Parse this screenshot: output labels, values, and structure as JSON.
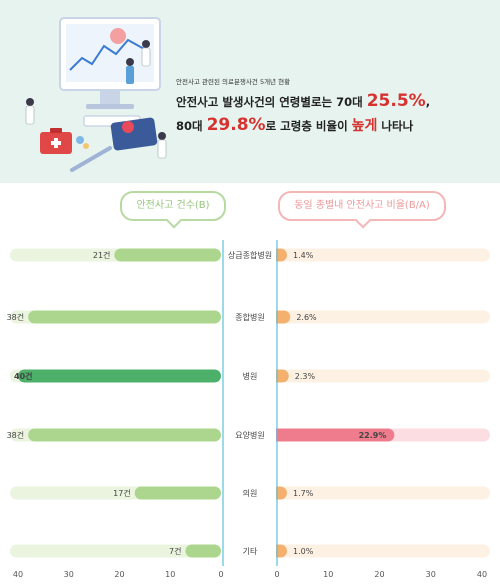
{
  "hero": {
    "subtitle": "안전사고 관련된 의료분쟁사건 5개년 현황",
    "line1_pre": "안전사고 발생사건의 연령별로는 70대 ",
    "line1_pct": "25.5%",
    "line1_post": ",",
    "line2_pre": "80대 ",
    "line2_pct": "29.8%",
    "line2_mid": "로 고령층 비율이 ",
    "line2_emph": "높게",
    "line2_post": " 나타나"
  },
  "legend": {
    "left": "안전사고 건수(B)",
    "right": "동일 종별내 안전사고 비율(B/A)"
  },
  "colors": {
    "green_track": "#eaf4df",
    "green_bar": "#acd58e",
    "green_highlight": "#4caf6a",
    "orange_track": "#fdf1e3",
    "orange_bar": "#f4b06e",
    "pink_track": "#fbdde2",
    "pink_highlight": "#ef7c8c",
    "axis_line": "#5bc0dc"
  },
  "chart_data": {
    "type": "bar",
    "categories": [
      "상급종합병원",
      "종합병원",
      "병원",
      "요양병원",
      "의원",
      "기타"
    ],
    "left": {
      "values": [
        21,
        38,
        40,
        38,
        17,
        7
      ],
      "labels": [
        "21건",
        "38건",
        "40건",
        "38건",
        "17건",
        "7건"
      ],
      "xlim": [
        0,
        40
      ],
      "ticks": [
        "40",
        "30",
        "20",
        "10",
        "0"
      ],
      "highlight": 2
    },
    "right": {
      "values": [
        1.4,
        2.6,
        2.3,
        22.9,
        1.7,
        1.0
      ],
      "labels": [
        "1.4%",
        "2.6%",
        "2.3%",
        "22.9%",
        "1.7%",
        "1.0%"
      ],
      "xlim": [
        0,
        40
      ],
      "ticks": [
        "0",
        "10",
        "20",
        "30",
        "40"
      ],
      "highlight": 3
    }
  }
}
